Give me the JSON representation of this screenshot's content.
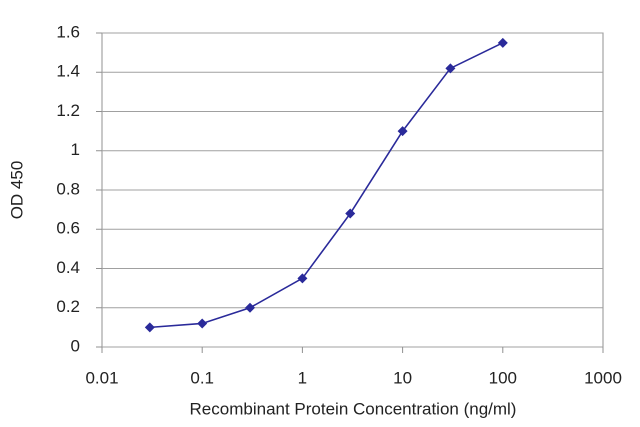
{
  "chart_data": {
    "type": "line",
    "x_label": "Recombinant Protein Concentration (ng/ml)",
    "y_label": "OD 450",
    "x": [
      0.03,
      0.1,
      0.3,
      1,
      3,
      10,
      30,
      100
    ],
    "values": [
      0.1,
      0.12,
      0.2,
      0.35,
      0.68,
      1.1,
      1.42,
      1.55
    ],
    "color": "#2a2a9a",
    "xscale": "log",
    "xlim": [
      0.01,
      1000
    ],
    "xticks": [
      0.01,
      0.1,
      1,
      10,
      100,
      1000
    ],
    "ylim": [
      0,
      1.6
    ],
    "yticks": [
      0,
      0.2,
      0.4,
      0.6,
      0.8,
      1,
      1.2,
      1.4,
      1.6
    ],
    "grid": true
  }
}
